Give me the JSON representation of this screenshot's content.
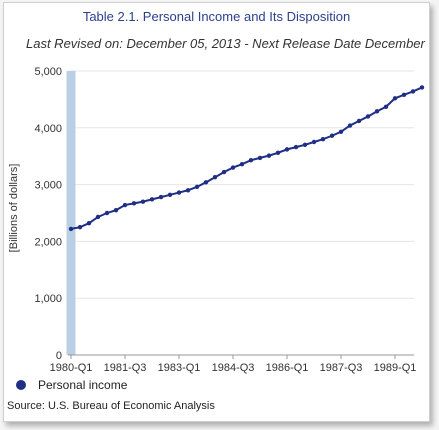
{
  "header": {
    "title": "Table 2.1. Personal Income and Its Disposition",
    "subtitle": "Last Revised on: December 05, 2013 - Next Release Date December"
  },
  "footer": {
    "source": "Source: U.S. Bureau of Economic Analysis"
  },
  "colors": {
    "series": "#1f2f86",
    "highlight_band": "#b8cfe4",
    "grid": "#e6e6e6",
    "axis_text": "#333333"
  },
  "chart_data": {
    "type": "line",
    "title": "Table 2.1. Personal Income and Its Disposition",
    "ylabel": "[Billions of dollars]",
    "xlabel": "",
    "ylim": [
      0,
      5000
    ],
    "yticks": [
      "0",
      "1,000",
      "2,000",
      "3,000",
      "4,000",
      "5,000"
    ],
    "ytick_values": [
      0,
      1000,
      2000,
      3000,
      4000,
      5000
    ],
    "xticks": [
      "1980-Q1",
      "1981-Q3",
      "1983-Q1",
      "1984-Q3",
      "1986-Q1",
      "1987-Q3",
      "1989-Q1"
    ],
    "xtick_index": [
      0,
      6,
      12,
      18,
      24,
      30,
      36
    ],
    "grid": true,
    "legend_position": "bottom-left",
    "x": [
      "1980-Q1",
      "1980-Q2",
      "1980-Q3",
      "1980-Q4",
      "1981-Q1",
      "1981-Q2",
      "1981-Q3",
      "1981-Q4",
      "1982-Q1",
      "1982-Q2",
      "1982-Q3",
      "1982-Q4",
      "1983-Q1",
      "1983-Q2",
      "1983-Q3",
      "1983-Q4",
      "1984-Q1",
      "1984-Q2",
      "1984-Q3",
      "1984-Q4",
      "1985-Q1",
      "1985-Q2",
      "1985-Q3",
      "1985-Q4",
      "1986-Q1",
      "1986-Q2",
      "1986-Q3",
      "1986-Q4",
      "1987-Q1",
      "1987-Q2",
      "1987-Q3",
      "1987-Q4",
      "1988-Q1",
      "1988-Q2",
      "1988-Q3",
      "1988-Q4",
      "1989-Q1",
      "1989-Q2",
      "1989-Q3",
      "1989-Q4"
    ],
    "highlight_x": "1980-Q1",
    "series": [
      {
        "name": "Personal income",
        "values": [
          2220,
          2250,
          2320,
          2430,
          2500,
          2550,
          2640,
          2670,
          2700,
          2740,
          2780,
          2820,
          2860,
          2900,
          2960,
          3040,
          3130,
          3220,
          3300,
          3360,
          3430,
          3470,
          3510,
          3560,
          3620,
          3660,
          3700,
          3750,
          3800,
          3860,
          3930,
          4040,
          4120,
          4200,
          4290,
          4370,
          4520,
          4580,
          4640,
          4710
        ]
      }
    ]
  }
}
